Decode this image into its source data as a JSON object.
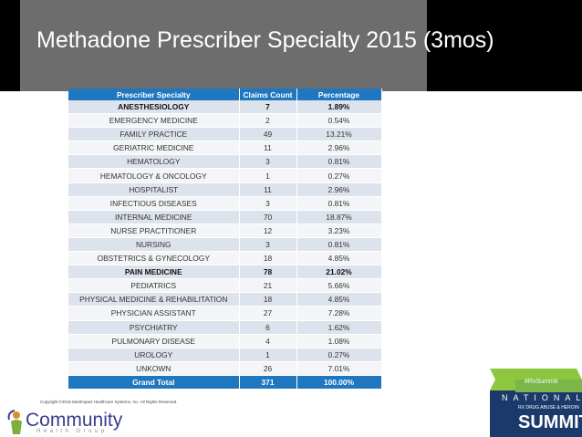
{
  "header": {
    "title": "Methadone Prescriber Specialty 2015 (3mos)"
  },
  "table": {
    "columns": [
      "Prescriber Specialty",
      "Claims Count",
      "Percentage"
    ],
    "rows": [
      [
        "ANESTHESIOLOGY",
        7,
        "1.89%"
      ],
      [
        "EMERGENCY MEDICINE",
        2,
        "0.54%"
      ],
      [
        "FAMILY PRACTICE",
        49,
        "13.21%"
      ],
      [
        "GERIATRIC MEDICINE",
        11,
        "2.96%"
      ],
      [
        "HEMATOLOGY",
        3,
        "0.81%"
      ],
      [
        "HEMATOLOGY & ONCOLOGY",
        1,
        "0.27%"
      ],
      [
        "HOSPITALIST",
        11,
        "2.96%"
      ],
      [
        "INFECTIOUS DISEASES",
        3,
        "0.81%"
      ],
      [
        "INTERNAL MEDICINE",
        70,
        "18.87%"
      ],
      [
        "NURSE PRACTITIONER",
        12,
        "3.23%"
      ],
      [
        "NURSING",
        3,
        "0.81%"
      ],
      [
        "OBSTETRICS & GYNECOLOGY",
        18,
        "4.85%"
      ],
      [
        "PAIN MEDICINE",
        78,
        "21.02%"
      ],
      [
        "PEDIATRICS",
        21,
        "5.66%"
      ],
      [
        "PHYSICAL MEDICINE & REHABILITATION",
        18,
        "4.85%"
      ],
      [
        "PHYSICIAN ASSISTANT",
        27,
        "7.28%"
      ],
      [
        "PSYCHIATRY",
        6,
        "1.62%"
      ],
      [
        "PULMONARY DISEASE",
        4,
        "1.08%"
      ],
      [
        "UROLOGY",
        1,
        "0.27%"
      ],
      [
        "UNKOWN",
        26,
        "7.01%"
      ]
    ],
    "total": [
      "Grand Total",
      371,
      "100.00%"
    ]
  },
  "footer": {
    "copyright": "Copyright ©2015 MedImpact Healthcare Systems, Inc. All Rights Reserved."
  },
  "logo": {
    "name": "Community",
    "tagline": "Health Group"
  },
  "badge": {
    "hashtag": "#RxSummit",
    "national": "NATIONAL",
    "subtitle": "RX DRUG ABUSE & HEROIN",
    "summit": "SUMMIT"
  }
}
